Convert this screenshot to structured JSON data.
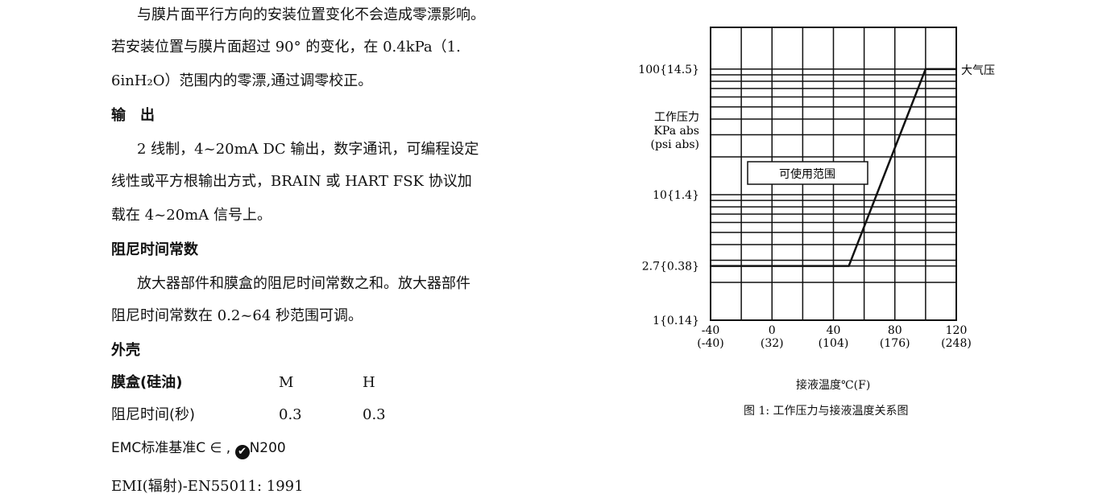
{
  "text": {
    "p1": [
      "与膜片面平行方向的安装位置变化不会造成零漂影响。",
      "若安装位置与膜片面超过 90° 的变化，在 0.4kPa（1.",
      "6inH₂O）范围内的零漂,通过调零校正。"
    ],
    "h_output": "输　出",
    "p2": [
      "2 线制，4~20mA DC 输出，数字通讯，可编程设定",
      "线性或平方根输出方式，BRAIN 或 HART FSK 协议加",
      "载在 4~20mA 信号上。"
    ],
    "h_damping": "阻尼时间常数",
    "p3": [
      "放大器部件和膜盒的阻尼时间常数之和。放大器部件",
      "阻尼时间常数在 0.2~64 秒范围可调。"
    ],
    "h_housing": "外壳",
    "table": {
      "header": [
        "膜盒(硅油)",
        "M",
        "H"
      ],
      "row": [
        "阻尼时间(秒)",
        "0.3",
        "0.3"
      ]
    },
    "emc": "EMC标准基准C ∈ ,",
    "emc_mark": "N200",
    "emi": "EMI(辐射)-EN55011:  1991"
  },
  "chart_data": {
    "type": "line",
    "title": "图 1:  工作压力与接液温度关系图",
    "xlabel": "接液温度℃(F)",
    "ylabel": [
      "工作压力",
      "KPa abs",
      "(psi abs)"
    ],
    "x_ticks": [
      {
        "c": "-40",
        "f": "(-40)"
      },
      {
        "c": "0",
        "f": "(32)"
      },
      {
        "c": "40",
        "f": "(104)"
      },
      {
        "c": "80",
        "f": "(176)"
      },
      {
        "c": "120",
        "f": "(248)"
      }
    ],
    "y_ticks": [
      {
        "v": 1,
        "label": "1{0.14}"
      },
      {
        "v": 2.7,
        "label": "2.7{0.38}"
      },
      {
        "v": 10,
        "label": "10{1.4}"
      },
      {
        "v": 100,
        "label": "100{14.5}"
      }
    ],
    "xlim": [
      -40,
      120
    ],
    "ylim": [
      1,
      215
    ],
    "yscale": "log",
    "grid": true,
    "series": [
      {
        "x": [
          -40,
          50,
          100,
          120
        ],
        "y": [
          2.7,
          2.7,
          100,
          100
        ]
      }
    ],
    "annotations": {
      "region": "可使用范围",
      "atmos": "大气压"
    }
  }
}
